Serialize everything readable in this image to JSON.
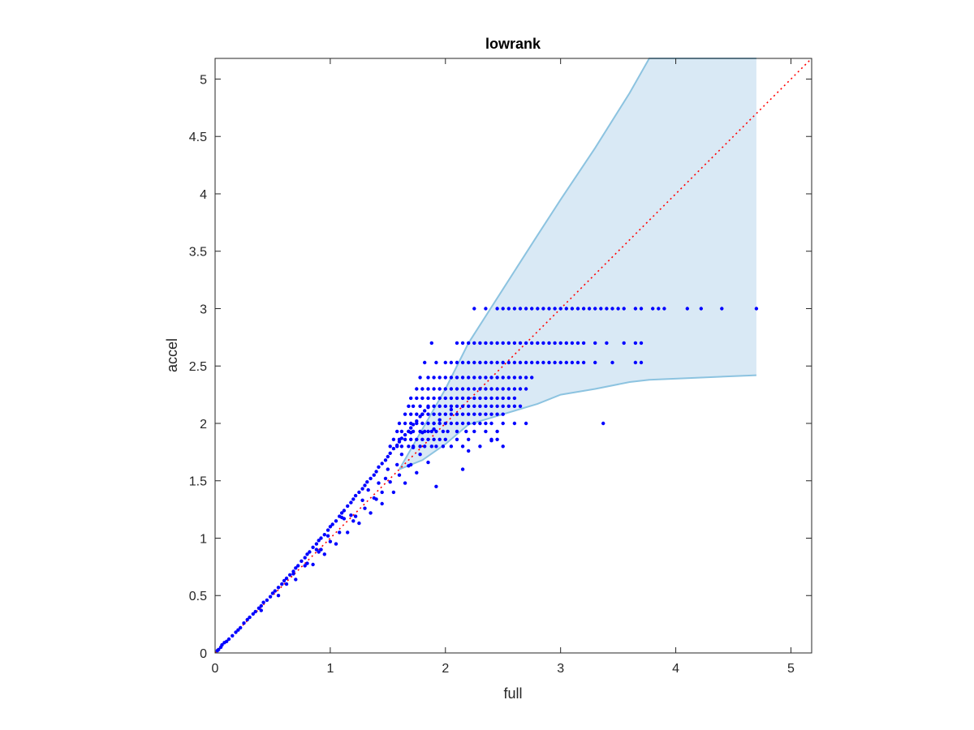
{
  "chart_data": {
    "type": "scatter",
    "title": "lowrank",
    "xlabel": "full",
    "ylabel": "accel",
    "xlim": [
      0,
      5.18
    ],
    "ylim": [
      0,
      5.18
    ],
    "xticks": [
      0,
      1,
      2,
      3,
      4,
      5
    ],
    "xtick_labels": [
      "0",
      "1",
      "2",
      "3",
      "4",
      "5"
    ],
    "yticks": [
      0,
      0.5,
      1,
      1.5,
      2,
      2.5,
      3,
      3.5,
      4,
      4.5,
      5
    ],
    "ytick_labels": [
      "0",
      "0.5",
      "1",
      "1.5",
      "2",
      "2.5",
      "3",
      "3.5",
      "4",
      "4.5",
      "5"
    ],
    "grid": false,
    "box": true,
    "colors": {
      "points": "#0000ff",
      "reference_line": "#ff0000",
      "band_fill": "#d9e9f5",
      "band_edge": "#8cc3e0",
      "axis": "#262626"
    },
    "reference_line": {
      "x": [
        0,
        5.18
      ],
      "y": [
        0,
        5.18
      ],
      "style": "dotted"
    },
    "band": {
      "x": [
        1.6,
        1.8,
        2.0,
        2.2,
        2.5,
        2.8,
        3.0,
        3.3,
        3.6,
        3.77,
        4.7
      ],
      "upper": [
        1.6,
        1.95,
        2.3,
        2.7,
        3.17,
        3.64,
        3.95,
        4.4,
        4.88,
        5.18,
        5.18
      ],
      "lower": [
        1.6,
        1.68,
        1.82,
        1.99,
        2.08,
        2.17,
        2.25,
        2.3,
        2.36,
        2.38,
        2.42
      ]
    },
    "points": {
      "rows": [
        {
          "y": 3.0,
          "x": [
            2.25,
            2.35,
            2.45,
            2.5,
            2.55,
            2.6,
            2.65,
            2.7,
            2.75,
            2.8,
            2.85,
            2.9,
            2.95,
            3.0,
            3.05,
            3.1,
            3.15,
            3.2,
            3.25,
            3.3,
            3.35,
            3.4,
            3.45,
            3.5,
            3.55,
            3.65,
            3.7,
            3.8,
            3.85,
            3.9,
            4.1,
            4.22,
            4.4,
            4.7
          ]
        },
        {
          "y": 2.7,
          "x": [
            1.88,
            2.1,
            2.15,
            2.2,
            2.25,
            2.3,
            2.35,
            2.4,
            2.45,
            2.5,
            2.55,
            2.6,
            2.65,
            2.7,
            2.75,
            2.8,
            2.85,
            2.9,
            2.95,
            3.0,
            3.05,
            3.1,
            3.15,
            3.2,
            3.3,
            3.4,
            3.55,
            3.65,
            3.7
          ]
        },
        {
          "y": 2.53,
          "x": [
            1.82,
            1.92,
            2.0,
            2.05,
            2.1,
            2.15,
            2.2,
            2.25,
            2.3,
            2.35,
            2.4,
            2.45,
            2.5,
            2.55,
            2.6,
            2.65,
            2.7,
            2.75,
            2.8,
            2.85,
            2.9,
            2.95,
            3.0,
            3.05,
            3.1,
            3.15,
            3.2,
            3.3,
            3.45,
            3.65,
            3.7
          ]
        },
        {
          "y": 2.4,
          "x": [
            1.78,
            1.85,
            1.9,
            1.95,
            2.0,
            2.05,
            2.1,
            2.15,
            2.2,
            2.25,
            2.3,
            2.35,
            2.4,
            2.45,
            2.5,
            2.55,
            2.6,
            2.65,
            2.7,
            2.75
          ]
        },
        {
          "y": 2.3,
          "x": [
            1.75,
            1.8,
            1.85,
            1.9,
            1.95,
            2.0,
            2.05,
            2.1,
            2.15,
            2.2,
            2.25,
            2.3,
            2.35,
            2.4,
            2.45,
            2.5,
            2.55,
            2.6,
            2.65,
            2.7
          ]
        },
        {
          "y": 2.22,
          "x": [
            1.7,
            1.75,
            1.8,
            1.85,
            1.9,
            1.95,
            2.0,
            2.05,
            2.1,
            2.15,
            2.2,
            2.25,
            2.3,
            2.35,
            2.4,
            2.45,
            2.5,
            2.55,
            2.6
          ]
        },
        {
          "y": 2.15,
          "x": [
            1.68,
            1.72,
            1.78,
            1.85,
            1.9,
            1.95,
            2.0,
            2.05,
            2.1,
            2.15,
            2.2,
            2.25,
            2.3,
            2.35,
            2.4,
            2.45,
            2.5,
            2.55,
            2.6,
            2.65
          ]
        },
        {
          "y": 2.08,
          "x": [
            1.65,
            1.7,
            1.75,
            1.8,
            1.85,
            1.9,
            1.95,
            2.0,
            2.05,
            2.1,
            2.15,
            2.2,
            2.25,
            2.3,
            2.35,
            2.4,
            2.45,
            2.5
          ]
        },
        {
          "y": 2.0,
          "x": [
            1.6,
            1.65,
            1.7,
            1.75,
            1.8,
            1.85,
            1.9,
            1.95,
            2.0,
            2.05,
            2.1,
            2.15,
            2.2,
            2.25,
            2.3,
            2.35,
            2.4,
            2.5,
            2.6,
            2.7,
            3.37
          ]
        },
        {
          "y": 1.93,
          "x": [
            1.58,
            1.62,
            1.68,
            1.72,
            1.78,
            1.82,
            1.88,
            1.92,
            1.98,
            2.02,
            2.1,
            2.18,
            2.25,
            2.35,
            2.45
          ]
        },
        {
          "y": 1.86,
          "x": [
            1.55,
            1.6,
            1.65,
            1.7,
            1.75,
            1.8,
            1.85,
            1.9,
            1.95,
            2.0,
            2.1,
            2.2,
            2.4,
            2.45
          ]
        },
        {
          "y": 1.8,
          "x": [
            1.52,
            1.58,
            1.62,
            1.68,
            1.72,
            1.78,
            1.82,
            1.88,
            1.92,
            1.98,
            2.05,
            2.15,
            2.3,
            2.5
          ]
        }
      ],
      "cloud": {
        "x": [
          0.02,
          0.03,
          0.05,
          0.06,
          0.08,
          0.1,
          0.12,
          0.15,
          0.18,
          0.2,
          0.22,
          0.25,
          0.28,
          0.3,
          0.33,
          0.35,
          0.38,
          0.4,
          0.42,
          0.45,
          0.48,
          0.5,
          0.52,
          0.55,
          0.58,
          0.6,
          0.62,
          0.65,
          0.68,
          0.7,
          0.72,
          0.75,
          0.78,
          0.8,
          0.82,
          0.85,
          0.88,
          0.9,
          0.92,
          0.95,
          0.98,
          1.0,
          1.02,
          1.05,
          1.08,
          1.1,
          1.12,
          1.15,
          1.18,
          1.2,
          1.22,
          1.25,
          1.28,
          1.3,
          1.32,
          1.35,
          1.38,
          1.4,
          1.42,
          1.45,
          1.48,
          1.5,
          1.52,
          1.55,
          1.58,
          1.6,
          1.62,
          1.65,
          1.68,
          1.7,
          1.72,
          1.75,
          1.78,
          1.8,
          1.82,
          1.85,
          0.4,
          0.55,
          0.7,
          0.85,
          0.95,
          1.05,
          1.15,
          1.25,
          1.35,
          1.45,
          1.55,
          1.65,
          1.75,
          1.85,
          0.62,
          0.78,
          0.92,
          1.08,
          1.22,
          1.38,
          1.52,
          1.68,
          1.78,
          0.98,
          1.12,
          1.28,
          1.42,
          1.58,
          1.72,
          1.85,
          1.95,
          2.05,
          1.1,
          1.33,
          1.5,
          1.62,
          1.8,
          1.9,
          0.8,
          0.9,
          1.0,
          1.2,
          1.4,
          1.6,
          1.3,
          1.45,
          1.7,
          0.68,
          0.88,
          1.18,
          1.48,
          1.9,
          2.2,
          2.4,
          1.7,
          2.15,
          1.92
        ],
        "y": [
          0.02,
          0.03,
          0.05,
          0.07,
          0.09,
          0.1,
          0.12,
          0.15,
          0.18,
          0.2,
          0.22,
          0.26,
          0.29,
          0.31,
          0.34,
          0.36,
          0.39,
          0.41,
          0.44,
          0.46,
          0.49,
          0.52,
          0.54,
          0.57,
          0.6,
          0.63,
          0.65,
          0.68,
          0.71,
          0.74,
          0.76,
          0.8,
          0.83,
          0.86,
          0.88,
          0.92,
          0.95,
          0.98,
          1.0,
          1.03,
          1.07,
          1.1,
          1.12,
          1.15,
          1.19,
          1.22,
          1.24,
          1.28,
          1.31,
          1.34,
          1.37,
          1.4,
          1.43,
          1.46,
          1.49,
          1.52,
          1.55,
          1.58,
          1.62,
          1.65,
          1.68,
          1.71,
          1.74,
          1.78,
          1.81,
          1.84,
          1.87,
          1.9,
          1.93,
          1.96,
          1.99,
          2.02,
          2.06,
          2.08,
          2.11,
          2.14,
          0.37,
          0.5,
          0.64,
          0.77,
          0.86,
          0.95,
          1.05,
          1.13,
          1.22,
          1.3,
          1.4,
          1.48,
          1.57,
          1.66,
          0.6,
          0.76,
          0.9,
          1.05,
          1.19,
          1.35,
          1.49,
          1.63,
          1.73,
          1.02,
          1.17,
          1.33,
          1.48,
          1.64,
          1.79,
          1.93,
          2.03,
          2.12,
          1.18,
          1.42,
          1.6,
          1.73,
          1.92,
          2.0,
          0.78,
          0.88,
          0.97,
          1.15,
          1.34,
          1.55,
          1.26,
          1.4,
          1.64,
          0.69,
          0.9,
          1.2,
          1.52,
          1.95,
          1.76,
          1.85,
          1.92,
          1.6,
          1.45
        ]
      }
    }
  }
}
